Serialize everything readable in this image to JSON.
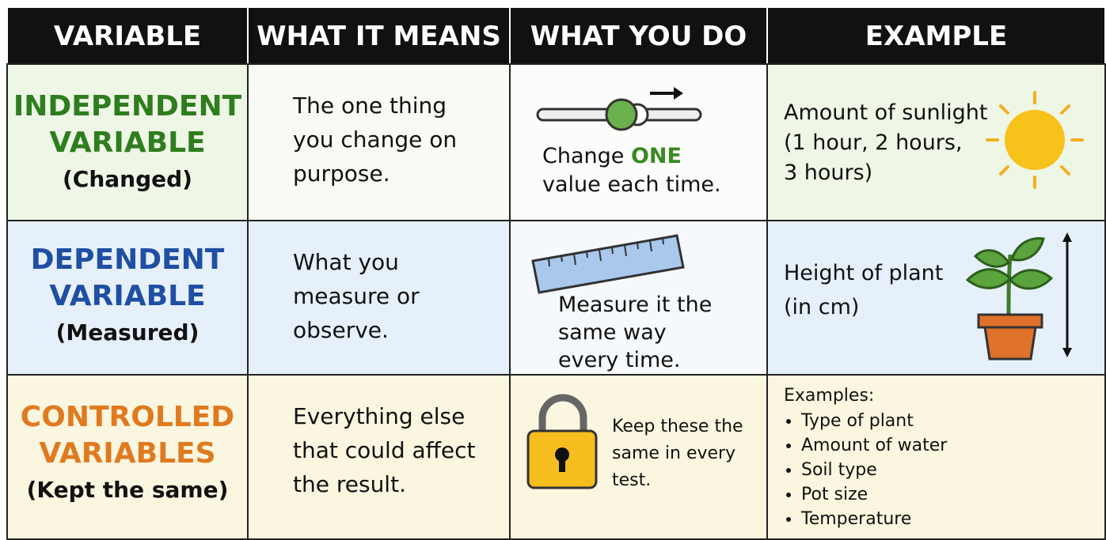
{
  "table": {
    "header": [
      "VARIABLE",
      "WHAT IT MEANS",
      "WHAT YOU DO",
      "EXAMPLE"
    ],
    "rows": [
      {
        "variable": {
          "name": [
            "INDEPENDENT",
            "VARIABLE"
          ],
          "note": "(Changed)"
        },
        "means": "The one thing you change on purpose.",
        "do": {
          "before": "Change",
          "highlight": "ONE",
          "after": "value each time."
        },
        "example": {
          "lines": [
            "Amount of sunlight",
            "(1 hour, 2 hours,",
            "3 hours)"
          ]
        }
      },
      {
        "variable": {
          "name": [
            "DEPENDENT",
            "VARIABLE"
          ],
          "note": "(Measured)"
        },
        "means": "What you measure or observe.",
        "do": {
          "text": "Measure it the same way every time."
        },
        "example": {
          "lines": [
            "Height of plant",
            "(in cm)"
          ]
        }
      },
      {
        "variable": {
          "name": [
            "CONTROLLED",
            "VARIABLES"
          ],
          "note": "(Kept the same)"
        },
        "means": "Everything else that could affect the result.",
        "do": {
          "text": "Keep these the same in every test."
        },
        "example": {
          "heading": "Examples:",
          "items": [
            "Type of plant",
            "Amount of water",
            "Soil type",
            "Pot size",
            "Temperature"
          ]
        }
      }
    ]
  }
}
